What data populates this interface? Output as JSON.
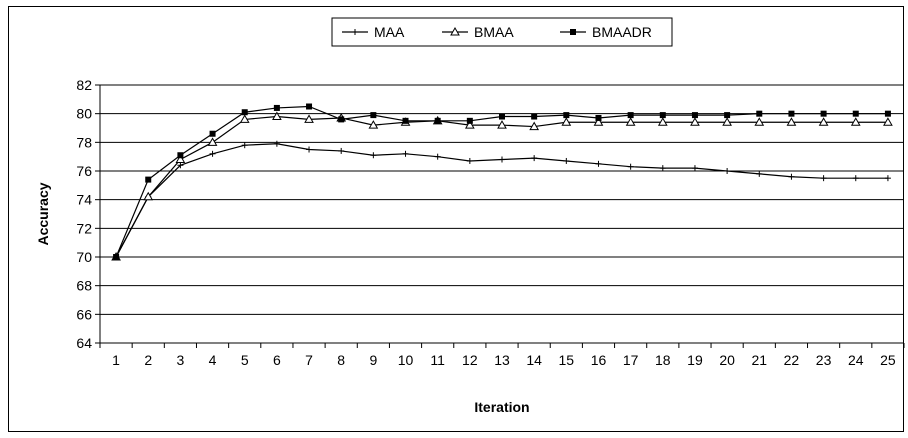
{
  "chart_data": {
    "type": "line",
    "xlabel": "Iteration",
    "ylabel": "Accuracy",
    "ylim": [
      64,
      82
    ],
    "yticks": [
      64,
      66,
      68,
      70,
      72,
      74,
      76,
      78,
      80,
      82
    ],
    "x": [
      1,
      2,
      3,
      4,
      5,
      6,
      7,
      8,
      9,
      10,
      11,
      12,
      13,
      14,
      15,
      16,
      17,
      18,
      19,
      20,
      21,
      22,
      23,
      24,
      25
    ],
    "grid": "horizontal",
    "legend_position": "top",
    "series": [
      {
        "name": "MAA",
        "marker": "plus",
        "values": [
          70.0,
          74.2,
          76.4,
          77.2,
          77.8,
          77.9,
          77.5,
          77.4,
          77.1,
          77.2,
          77.0,
          76.7,
          76.8,
          76.9,
          76.7,
          76.5,
          76.3,
          76.2,
          76.2,
          76.0,
          75.8,
          75.6,
          75.5,
          75.5,
          75.5
        ]
      },
      {
        "name": "BMAA",
        "marker": "triangle",
        "values": [
          70.0,
          74.2,
          76.8,
          78.0,
          79.6,
          79.8,
          79.6,
          79.7,
          79.2,
          79.4,
          79.5,
          79.2,
          79.2,
          79.1,
          79.4,
          79.4,
          79.4,
          79.4,
          79.4,
          79.4,
          79.4,
          79.4,
          79.4,
          79.4,
          79.4
        ]
      },
      {
        "name": "BMAADR",
        "marker": "square",
        "values": [
          70.0,
          75.4,
          77.1,
          78.6,
          80.1,
          80.4,
          80.5,
          79.6,
          79.9,
          79.5,
          79.5,
          79.5,
          79.8,
          79.8,
          79.9,
          79.7,
          79.9,
          79.9,
          79.9,
          79.9,
          80.0,
          80.0,
          80.0,
          80.0,
          80.0
        ]
      }
    ]
  }
}
